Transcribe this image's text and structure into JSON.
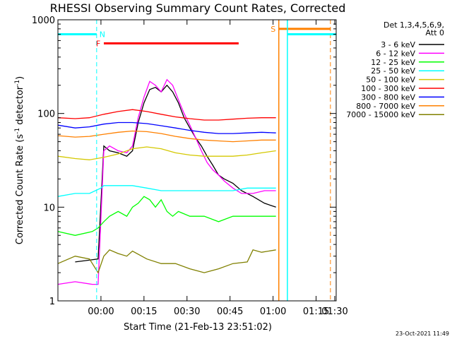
{
  "chart_data": {
    "type": "line",
    "title": "RHESSI Observing Summary Count Rates, Corrected",
    "xlabel": "Start Time (21-Feb-13 23:51:02)",
    "ylabel": "Corrected Count Rate (s",
    "ylabel_sup1": "-1",
    "ylabel_mid": " detector",
    "ylabel_sup2": "-1",
    "ylabel_end": ")",
    "y_scale": "log",
    "ylim": [
      1,
      1000
    ],
    "xlim": [
      -6,
      91
    ],
    "x_unit": "minutes after 21-Feb-13 23:51:02",
    "xticks": [
      {
        "t": 9,
        "label": "00:00"
      },
      {
        "t": 24,
        "label": "00:15"
      },
      {
        "t": 39,
        "label": "00:30"
      },
      {
        "t": 54,
        "label": "00:45"
      },
      {
        "t": 69,
        "label": "01:00"
      },
      {
        "t": 84,
        "label": "01:15"
      },
      {
        "t": 99,
        "label": "01:30"
      }
    ],
    "yticks": [
      {
        "v": 1,
        "label": "1"
      },
      {
        "v": 10,
        "label": "10"
      },
      {
        "v": 100,
        "label": "100"
      },
      {
        "v": 1000,
        "label": "1000"
      }
    ],
    "legend": {
      "placement": "right",
      "header1": "Det 1,3,4,5,6,9,",
      "header2": "Att 0"
    },
    "series": [
      {
        "name": "3 - 6 keV",
        "color": "#000000",
        "t": [
          -6,
          0,
          8,
          10,
          12,
          15,
          18,
          20,
          22,
          24,
          26,
          28,
          30,
          32,
          34,
          36,
          38,
          40,
          42,
          44,
          46,
          48,
          50,
          52,
          55,
          58,
          62,
          66,
          70
        ],
        "v": [
          0,
          2.6,
          2.8,
          45,
          40,
          38,
          35,
          40,
          80,
          130,
          180,
          190,
          170,
          200,
          170,
          130,
          90,
          70,
          55,
          45,
          35,
          28,
          22,
          20,
          18,
          15,
          13,
          11,
          10
        ]
      },
      {
        "name": "6 - 12 keV",
        "color": "#ff00ff",
        "t": [
          -6,
          0,
          6,
          8,
          10,
          12,
          15,
          18,
          20,
          22,
          24,
          26,
          28,
          30,
          32,
          34,
          36,
          38,
          40,
          42,
          44,
          46,
          48,
          50,
          52,
          55,
          58,
          62,
          66,
          70
        ],
        "v": [
          1.5,
          1.6,
          1.5,
          1.5,
          40,
          45,
          40,
          38,
          45,
          90,
          150,
          220,
          200,
          170,
          230,
          200,
          140,
          100,
          75,
          55,
          40,
          30,
          25,
          22,
          19,
          16,
          14,
          14,
          15,
          15
        ]
      },
      {
        "name": "12 - 25 keV",
        "color": "#00ff00",
        "t": [
          -6,
          0,
          6,
          8,
          10,
          12,
          15,
          18,
          20,
          22,
          24,
          26,
          28,
          30,
          32,
          34,
          36,
          40,
          45,
          50,
          55,
          60,
          65,
          70
        ],
        "v": [
          5.5,
          5,
          5.5,
          6,
          7,
          8,
          9,
          8,
          10,
          11,
          13,
          12,
          10,
          12,
          9,
          8,
          9,
          8,
          8,
          7,
          8,
          8,
          8,
          8
        ]
      },
      {
        "name": "25 - 50 keV",
        "color": "#00ffff",
        "t": [
          -6,
          0,
          5,
          9,
          10,
          15,
          20,
          25,
          30,
          35,
          40,
          45,
          50,
          55,
          60,
          65,
          70
        ],
        "v": [
          13,
          14,
          14,
          16,
          17,
          17,
          17,
          16,
          15,
          15,
          15,
          15,
          15,
          15,
          16,
          16,
          16
        ]
      },
      {
        "name": "50 - 100 keV",
        "color": "#d4c800",
        "t": [
          -6,
          0,
          5,
          10,
          15,
          20,
          25,
          30,
          35,
          40,
          45,
          50,
          55,
          60,
          65,
          70
        ],
        "v": [
          35,
          33,
          32,
          34,
          37,
          42,
          44,
          42,
          38,
          36,
          35,
          35,
          35,
          36,
          38,
          40
        ]
      },
      {
        "name": "100 - 300 keV",
        "color": "#ff0000",
        "t": [
          -6,
          0,
          5,
          10,
          15,
          20,
          25,
          30,
          35,
          40,
          45,
          50,
          55,
          60,
          65,
          70
        ],
        "v": [
          90,
          88,
          90,
          98,
          105,
          110,
          105,
          98,
          92,
          88,
          85,
          85,
          87,
          89,
          90,
          90
        ]
      },
      {
        "name": "300 - 800 keV",
        "color": "#0000ff",
        "t": [
          -6,
          0,
          5,
          10,
          15,
          20,
          25,
          30,
          35,
          40,
          45,
          50,
          55,
          60,
          65,
          70
        ],
        "v": [
          75,
          70,
          72,
          77,
          80,
          80,
          78,
          74,
          70,
          66,
          63,
          61,
          61,
          62,
          63,
          62
        ]
      },
      {
        "name": "800 - 7000 keV",
        "color": "#ff8000",
        "t": [
          -6,
          0,
          5,
          10,
          15,
          20,
          25,
          30,
          35,
          40,
          45,
          50,
          55,
          60,
          65,
          70
        ],
        "v": [
          58,
          56,
          57,
          60,
          63,
          65,
          64,
          61,
          57,
          54,
          52,
          51,
          50,
          51,
          52,
          52
        ]
      },
      {
        "name": "7000 - 15000 keV",
        "color": "#808000",
        "t": [
          -6,
          0,
          5,
          8,
          10,
          12,
          15,
          18,
          20,
          25,
          30,
          35,
          40,
          45,
          50,
          55,
          60,
          62,
          65,
          70
        ],
        "v": [
          2.5,
          3,
          2.8,
          2,
          3,
          3.5,
          3.2,
          3,
          3.4,
          2.8,
          2.5,
          2.5,
          2.2,
          2,
          2.2,
          2.5,
          2.6,
          3.5,
          3.3,
          3.5
        ]
      }
    ],
    "flags": {
      "cyan_N": {
        "label": "N",
        "color": "#00ffff",
        "t": [
          -6,
          7.5
        ],
        "level": 700,
        "dash_t": 7.5
      },
      "red_F": {
        "label": "F",
        "color": "#ff0000",
        "t": [
          10,
          57
        ],
        "level": 560
      },
      "orange_S": {
        "label": "S",
        "color": "#ff8000",
        "t": [
          71,
          89
        ],
        "level": 800,
        "line_t": 71,
        "dash_t": 89
      },
      "cyan_2": {
        "color": "#00ffff",
        "t": [
          74,
          91
        ],
        "level": 700,
        "line_t": 74,
        "dash_t": 91
      }
    },
    "grid": false,
    "timestamp": "23-Oct-2021 11:49"
  }
}
